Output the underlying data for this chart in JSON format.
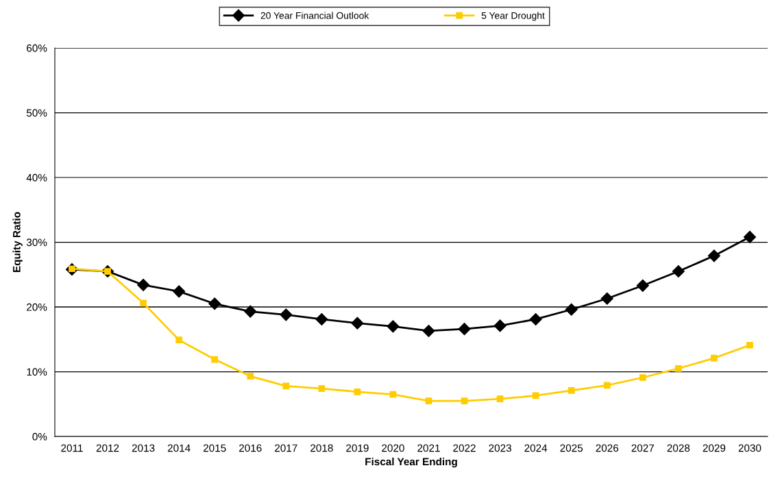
{
  "chart_data": {
    "type": "line",
    "xlabel": "Fiscal Year Ending",
    "ylabel": "Equity Ratio",
    "categories": [
      "2011",
      "2012",
      "2013",
      "2014",
      "2015",
      "2016",
      "2017",
      "2018",
      "2019",
      "2020",
      "2021",
      "2022",
      "2023",
      "2024",
      "2025",
      "2026",
      "2027",
      "2028",
      "2029",
      "2030"
    ],
    "series": [
      {
        "name": "20 Year Financial Outlook",
        "color": "#000000",
        "marker": "diamond",
        "values": [
          25.8,
          25.5,
          23.4,
          22.4,
          20.5,
          19.3,
          18.8,
          18.1,
          17.5,
          17.0,
          16.3,
          16.6,
          17.1,
          18.1,
          19.6,
          21.3,
          23.3,
          25.5,
          27.9,
          30.8
        ]
      },
      {
        "name": "5 Year Drought",
        "color": "#ffcc00",
        "marker": "square",
        "values": [
          25.9,
          25.5,
          20.6,
          14.9,
          11.9,
          9.3,
          7.8,
          7.4,
          6.9,
          6.5,
          5.5,
          5.5,
          5.8,
          6.3,
          7.1,
          7.9,
          9.1,
          10.5,
          12.1,
          14.1
        ]
      }
    ],
    "ylim": [
      0,
      60
    ],
    "yticks": [
      {
        "value": 0,
        "label": "0%"
      },
      {
        "value": 10,
        "label": "10%"
      },
      {
        "value": 20,
        "label": "20%"
      },
      {
        "value": 30,
        "label": "30%"
      },
      {
        "value": 40,
        "label": "40%"
      },
      {
        "value": 50,
        "label": "50%"
      },
      {
        "value": 60,
        "label": "60%"
      }
    ],
    "grid": "y",
    "legend": "top",
    "line_style": "solid"
  }
}
